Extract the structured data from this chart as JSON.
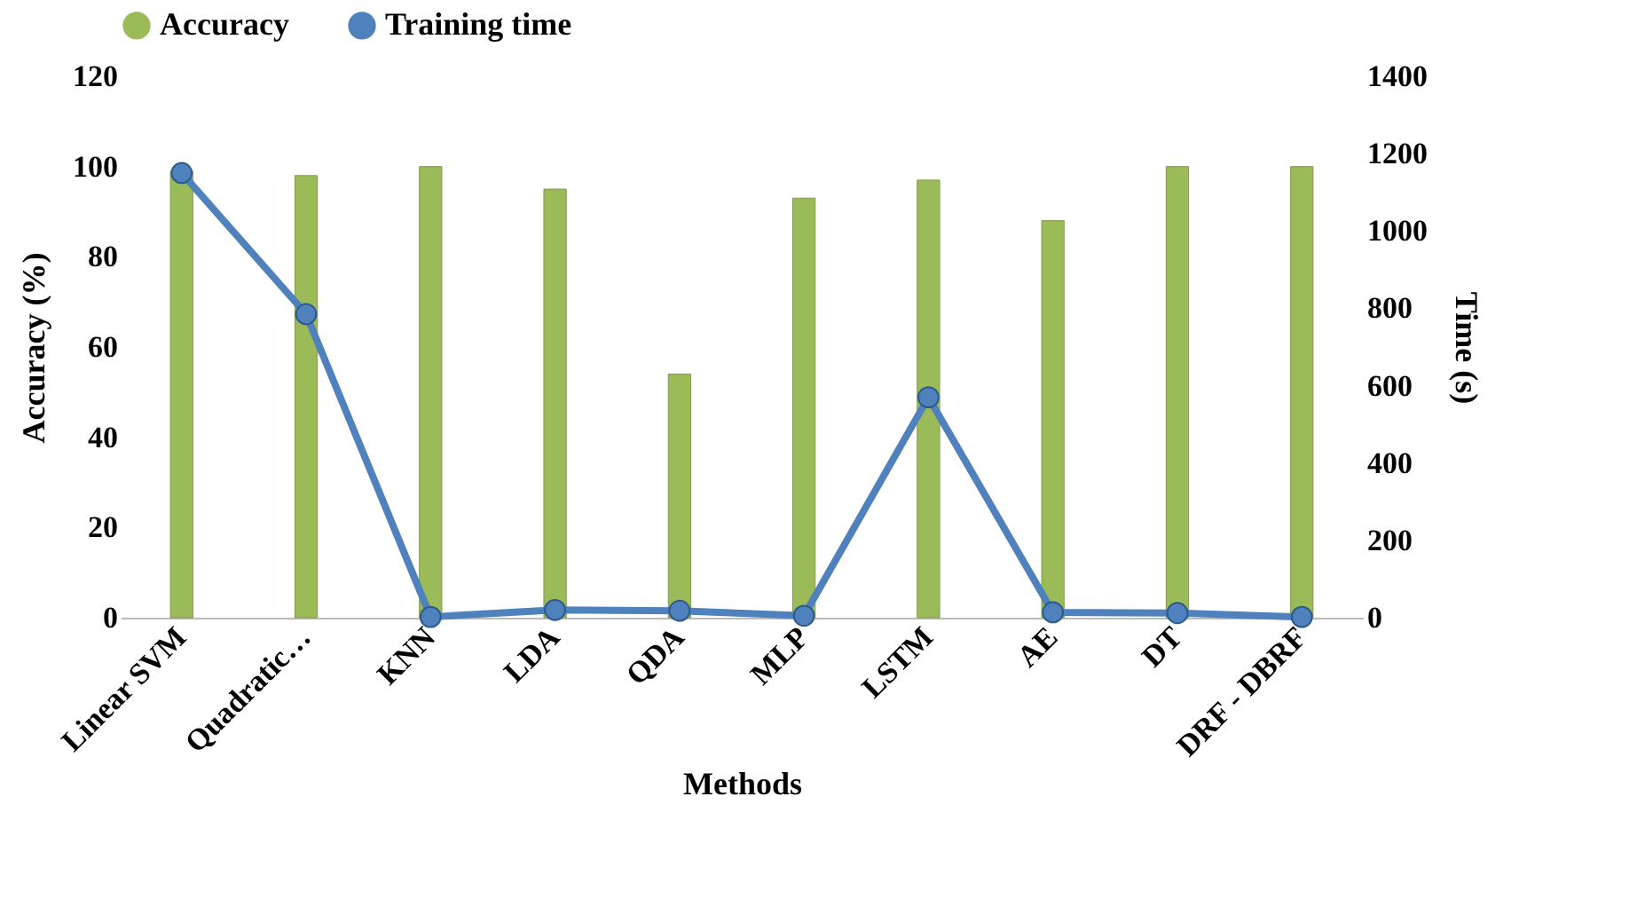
{
  "chart_data": {
    "type": "bar",
    "xlabel": "Methods",
    "ylabel": "Accuracy (%)",
    "y2label": "Time (s)",
    "categories": [
      "Linear SVM",
      "Quadratic…",
      "KNN",
      "LDA",
      "QDA",
      "MLP",
      "LSTM",
      "AE",
      "DT",
      "DRF - DBRF"
    ],
    "series": [
      {
        "name": "Accuracy",
        "color": "#9bbb59",
        "values": [
          99,
          98,
          100,
          95,
          54,
          93,
          97,
          88,
          100,
          100
        ]
      },
      {
        "name": "Training time",
        "type": "line",
        "axis": "y2",
        "color": "#4f81bd",
        "values": [
          1150,
          785,
          2,
          20,
          18,
          5,
          570,
          14,
          12,
          2
        ]
      }
    ],
    "ylim": [
      0,
      120
    ],
    "yticks": [
      0,
      20,
      40,
      60,
      80,
      100,
      120
    ],
    "y2lim": [
      0,
      1400
    ],
    "y2ticks": [
      0,
      200,
      400,
      600,
      800,
      1000,
      1200,
      1400
    ],
    "legend": "top",
    "marker": "circle",
    "line_style": "solid",
    "grid": false
  }
}
